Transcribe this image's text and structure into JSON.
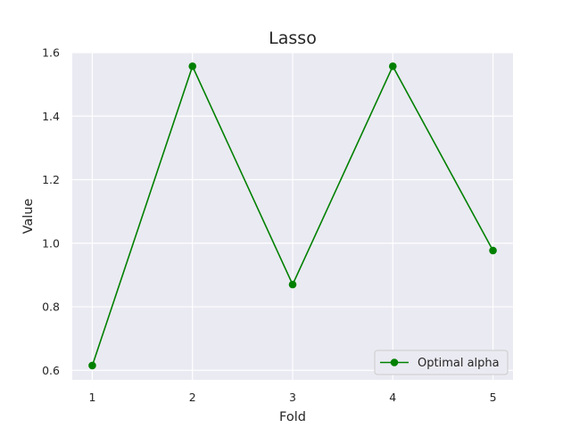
{
  "chart_data": {
    "type": "line",
    "title": "Lasso",
    "xlabel": "Fold",
    "ylabel": "Value",
    "x": [
      1,
      2,
      3,
      4,
      5
    ],
    "series": [
      {
        "name": "Optimal alpha",
        "values": [
          0.615,
          1.557,
          0.87,
          1.557,
          0.977
        ]
      }
    ],
    "x_ticks": [
      1,
      2,
      3,
      4,
      5
    ],
    "y_ticks": [
      0.6,
      0.8,
      1.0,
      1.2,
      1.4,
      1.6
    ],
    "y_tick_labels": [
      "0.6",
      "0.8",
      "1.0",
      "1.2",
      "1.4",
      "1.6"
    ],
    "xlim": [
      0.8,
      5.2
    ],
    "ylim": [
      0.57,
      1.6
    ],
    "grid": true,
    "legend_position": "lower-right",
    "colors": {
      "line": "#008000",
      "background": "#eaeaf2",
      "grid": "#ffffff"
    }
  }
}
